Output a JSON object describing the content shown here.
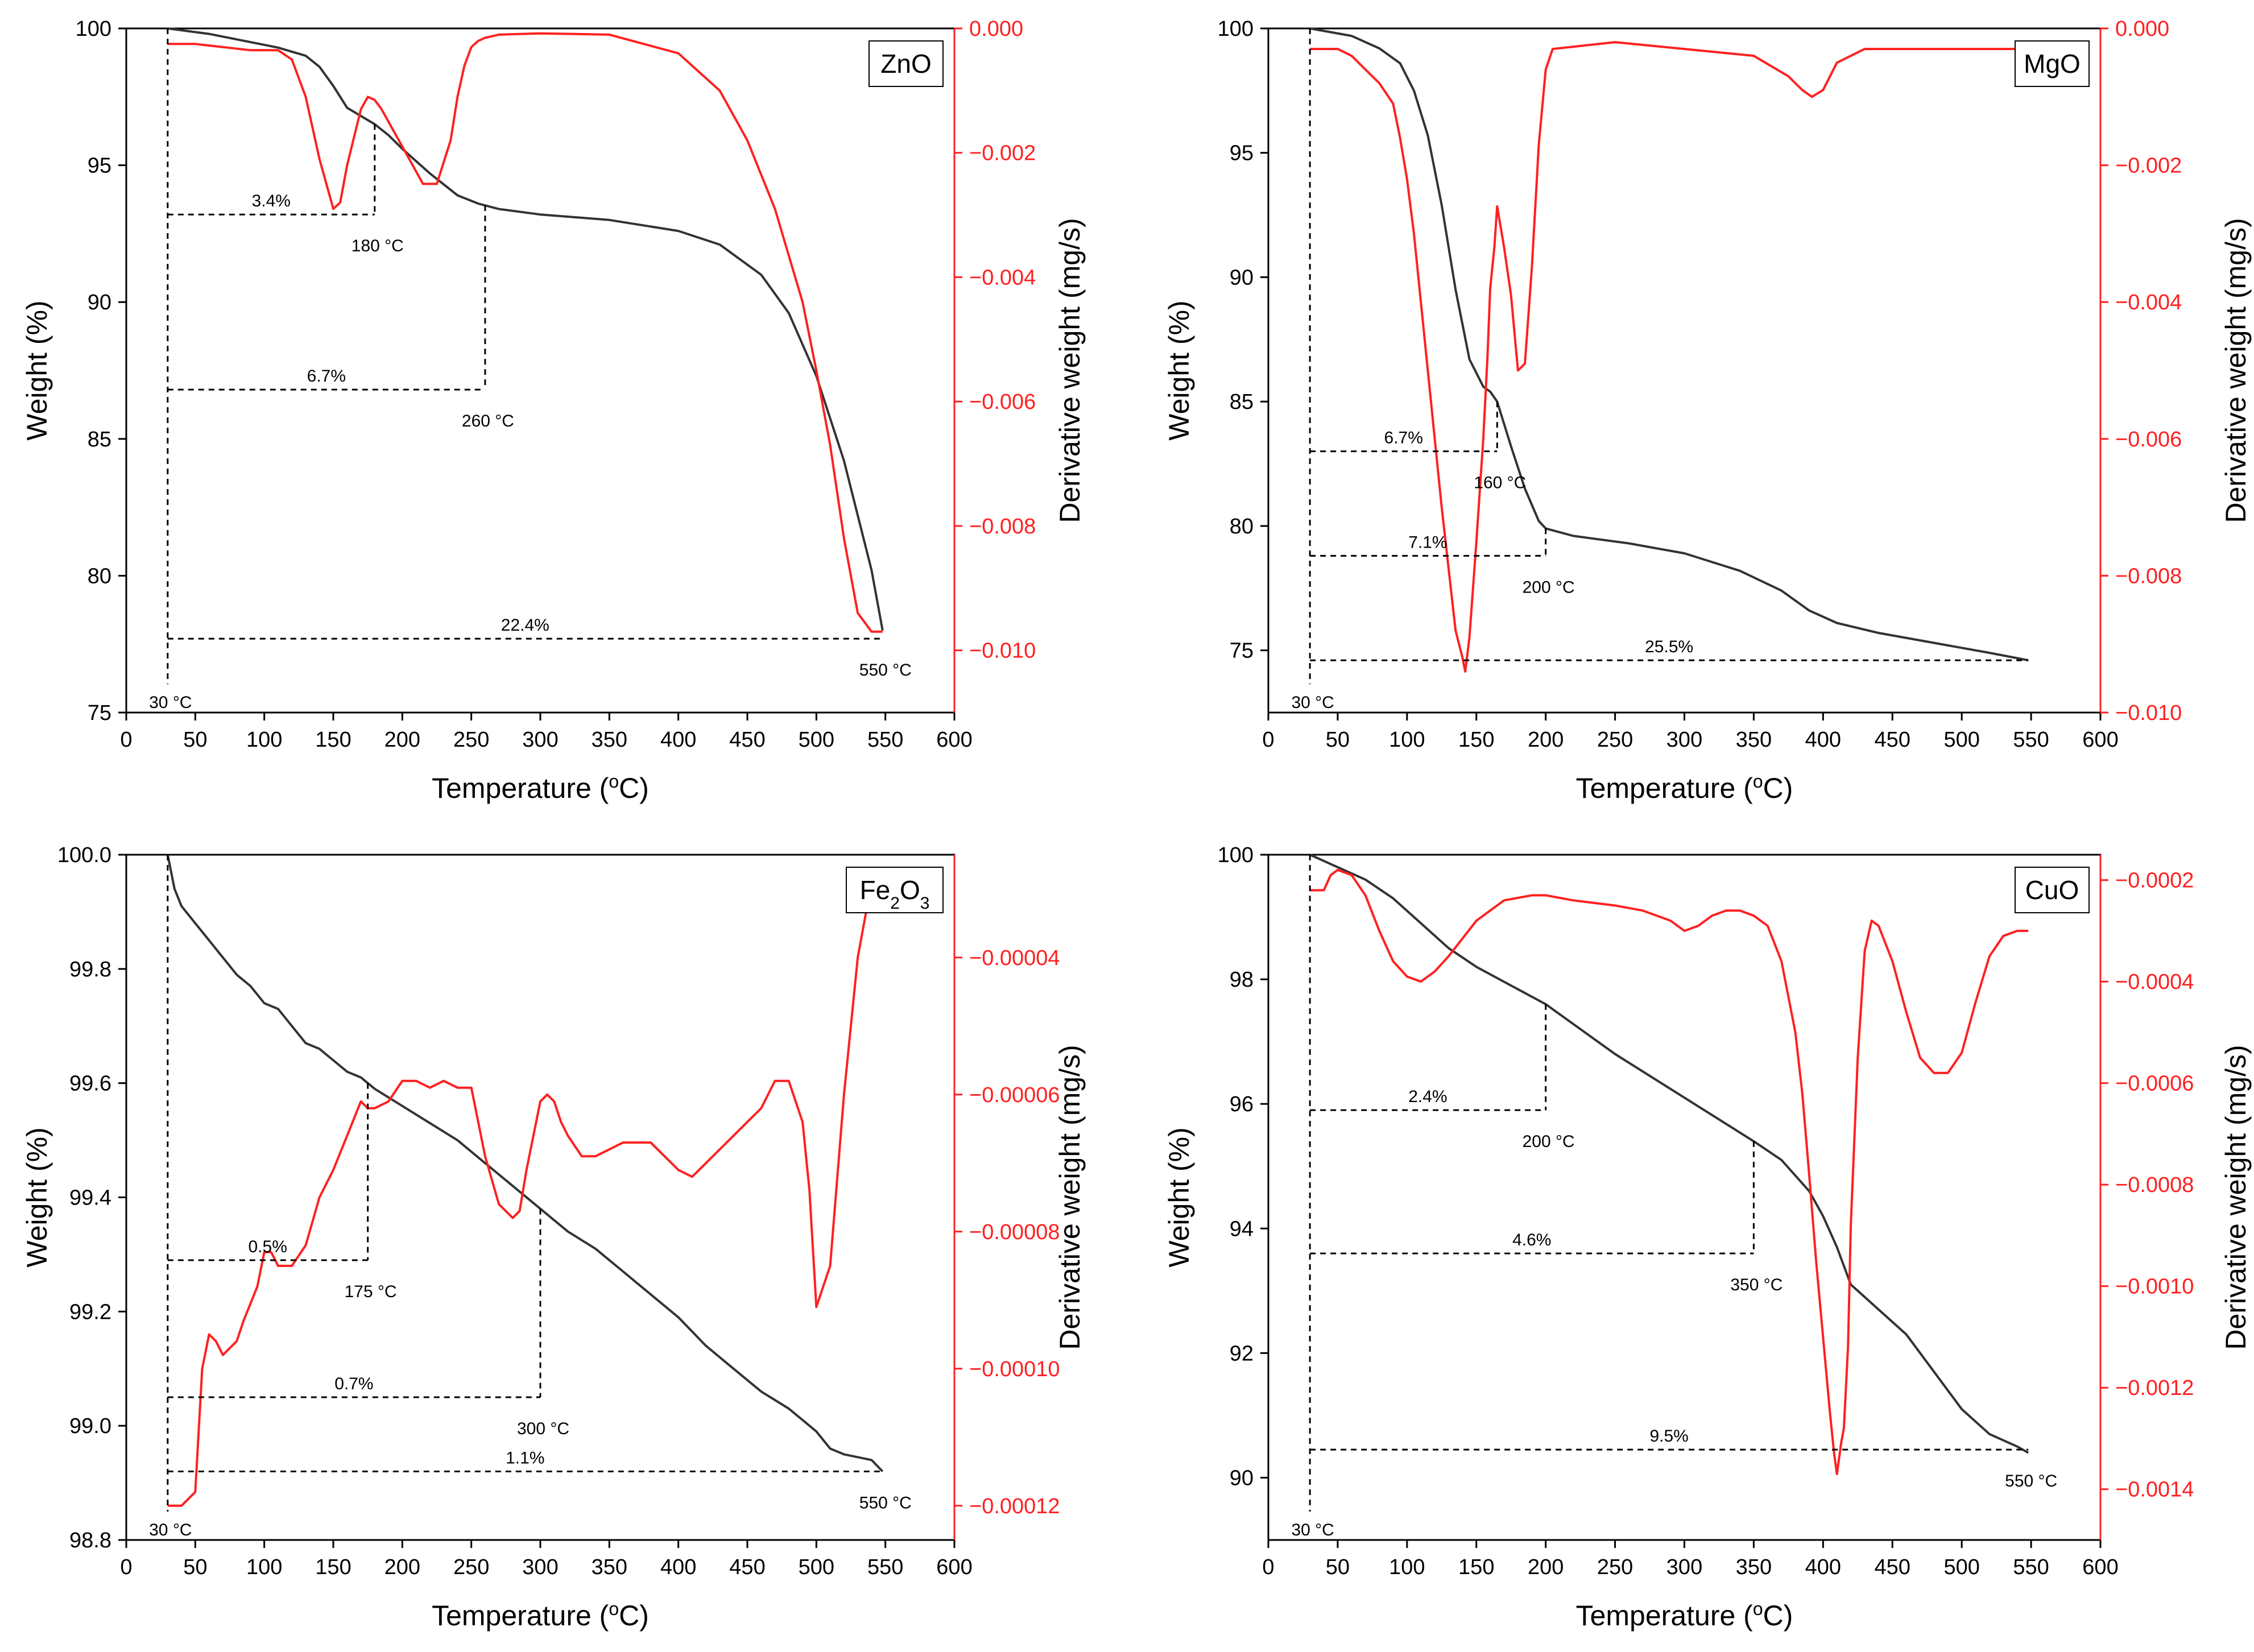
{
  "colors": {
    "weight": "#333333",
    "derivative": "#ff2020",
    "annotation": "#000000"
  },
  "chart_data": [
    {
      "type": "line",
      "panel_label": "ZnO",
      "xlabel": "Temperature (",
      "xlabel_sup": "o",
      "xlabel_tail": "C)",
      "ylabel": "Weight (%)",
      "y2label": "Derivative weight (mg/s)",
      "xlim": [
        0,
        600
      ],
      "ylim": [
        75,
        100
      ],
      "y2lim": [
        -0.011,
        0.0
      ],
      "xticks": [
        0,
        50,
        100,
        150,
        200,
        250,
        300,
        350,
        400,
        450,
        500,
        550,
        600
      ],
      "yticks": [
        75,
        80,
        85,
        90,
        95,
        100
      ],
      "yticklabels": [
        "75",
        "80",
        "85",
        "90",
        "95",
        "100"
      ],
      "y2ticks": [
        0.0,
        -0.002,
        -0.004,
        -0.006,
        -0.008,
        -0.01
      ],
      "y2ticklabels": [
        "0.000",
        "−0.002",
        "−0.004",
        "−0.006",
        "−0.008",
        "−0.010"
      ],
      "series": [
        {
          "axis": "left",
          "x": [
            30,
            60,
            90,
            110,
            130,
            140,
            150,
            160,
            170,
            180,
            190,
            200,
            220,
            240,
            255,
            270,
            300,
            350,
            400,
            430,
            460,
            480,
            500,
            520,
            540,
            548
          ],
          "y": [
            100,
            99.8,
            99.5,
            99.3,
            99.0,
            98.6,
            97.9,
            97.1,
            96.8,
            96.5,
            96.1,
            95.6,
            94.7,
            93.9,
            93.6,
            93.4,
            93.2,
            93.0,
            92.6,
            92.1,
            91.0,
            89.6,
            87.3,
            84.2,
            80.2,
            78.0
          ]
        },
        {
          "axis": "right",
          "x": [
            30,
            50,
            70,
            90,
            110,
            120,
            130,
            140,
            150,
            155,
            160,
            170,
            175,
            180,
            185,
            195,
            205,
            215,
            225,
            235,
            240,
            245,
            250,
            255,
            260,
            270,
            300,
            350,
            400,
            430,
            450,
            470,
            490,
            500,
            510,
            520,
            530,
            540,
            548
          ],
          "y": [
            -0.00025,
            -0.00025,
            -0.0003,
            -0.00035,
            -0.00035,
            -0.0005,
            -0.0011,
            -0.0021,
            -0.0029,
            -0.0028,
            -0.0022,
            -0.0013,
            -0.0011,
            -0.00115,
            -0.0013,
            -0.0017,
            -0.0021,
            -0.0025,
            -0.0025,
            -0.0018,
            -0.0011,
            -0.0006,
            -0.0003,
            -0.0002,
            -0.00015,
            -0.0001,
            -8e-05,
            -0.0001,
            -0.0004,
            -0.001,
            -0.0018,
            -0.0029,
            -0.0044,
            -0.0055,
            -0.0067,
            -0.0082,
            -0.0094,
            -0.0097,
            -0.0097
          ]
        }
      ],
      "annotations": [
        {
          "pct": "3.4%",
          "temp": "180 °C",
          "x_end": 180,
          "y": 93.2
        },
        {
          "pct": "6.7%",
          "temp": "260 °C",
          "x_end": 260,
          "y": 86.8
        },
        {
          "pct": "22.4%",
          "temp": "550 °C",
          "x_end": 548,
          "y": 77.7
        }
      ],
      "start_label": "30 °C",
      "start_x": 30
    },
    {
      "type": "line",
      "panel_label": "MgO",
      "xlabel": "Temperature (",
      "xlabel_sup": "o",
      "xlabel_tail": "C)",
      "ylabel": "Weight (%)",
      "y2label": "Derivative weight (mg/s)",
      "xlim": [
        0,
        600
      ],
      "ylim": [
        72.5,
        100
      ],
      "y2lim": [
        -0.01,
        0.0
      ],
      "xticks": [
        0,
        50,
        100,
        150,
        200,
        250,
        300,
        350,
        400,
        450,
        500,
        550,
        600
      ],
      "yticks": [
        75,
        80,
        85,
        90,
        95,
        100
      ],
      "yticklabels": [
        "75",
        "80",
        "85",
        "90",
        "95",
        "100"
      ],
      "y2ticks": [
        0.0,
        -0.002,
        -0.004,
        -0.006,
        -0.008,
        -0.01
      ],
      "y2ticklabels": [
        "0.000",
        "−0.002",
        "−0.004",
        "−0.006",
        "−0.008",
        "−0.010"
      ],
      "series": [
        {
          "axis": "left",
          "x": [
            30,
            60,
            80,
            95,
            105,
            115,
            125,
            135,
            145,
            155,
            160,
            165,
            175,
            185,
            195,
            200,
            220,
            260,
            300,
            340,
            370,
            390,
            410,
            440,
            480,
            520,
            548
          ],
          "y": [
            100,
            99.7,
            99.2,
            98.6,
            97.5,
            95.7,
            92.9,
            89.5,
            86.7,
            85.6,
            85.4,
            85.0,
            83.2,
            81.5,
            80.2,
            79.9,
            79.6,
            79.3,
            78.9,
            78.2,
            77.4,
            76.6,
            76.1,
            75.7,
            75.3,
            74.9,
            74.6
          ]
        },
        {
          "axis": "right",
          "x": [
            30,
            50,
            60,
            70,
            80,
            90,
            95,
            100,
            105,
            110,
            115,
            120,
            125,
            130,
            135,
            140,
            142,
            145,
            150,
            155,
            158,
            160,
            163,
            165,
            170,
            175,
            180,
            185,
            190,
            195,
            200,
            205,
            250,
            300,
            350,
            375,
            385,
            392,
            400,
            410,
            430,
            500,
            548
          ],
          "y": [
            -0.0003,
            -0.0003,
            -0.0004,
            -0.0006,
            -0.0008,
            -0.0011,
            -0.0016,
            -0.0022,
            -0.003,
            -0.004,
            -0.005,
            -0.006,
            -0.007,
            -0.0079,
            -0.0088,
            -0.0092,
            -0.0094,
            -0.0089,
            -0.0075,
            -0.006,
            -0.0048,
            -0.0038,
            -0.0032,
            -0.0026,
            -0.0032,
            -0.0039,
            -0.005,
            -0.0049,
            -0.0035,
            -0.0017,
            -0.0006,
            -0.0003,
            -0.0002,
            -0.0003,
            -0.0004,
            -0.0007,
            -0.0009,
            -0.001,
            -0.0009,
            -0.0005,
            -0.0003,
            -0.0003,
            -0.0003
          ]
        }
      ],
      "annotations": [
        {
          "pct": "6.7%",
          "temp": "160 °C",
          "x_end": 165,
          "y": 83.0
        },
        {
          "pct": "7.1%",
          "temp": "200 °C",
          "x_end": 200,
          "y": 78.8
        },
        {
          "pct": "25.5%",
          "temp": "",
          "x_end": 548,
          "y": 74.6
        }
      ],
      "start_label": "30 °C",
      "start_x": 30
    },
    {
      "type": "line",
      "panel_label": "Fe",
      "panel_label_sub1": "2",
      "panel_label_mid": "O",
      "panel_label_sub2": "3",
      "xlabel": "Temperature (",
      "xlabel_sup": "o",
      "xlabel_tail": "C)",
      "ylabel": "Weight (%)",
      "y2label": "Derivative weight (mg/s)",
      "xlim": [
        0,
        600
      ],
      "ylim": [
        98.8,
        100.0
      ],
      "y2lim": [
        -0.000125,
        -2.5e-05
      ],
      "xticks": [
        0,
        50,
        100,
        150,
        200,
        250,
        300,
        350,
        400,
        450,
        500,
        550,
        600
      ],
      "yticks": [
        98.8,
        99.0,
        99.2,
        99.4,
        99.6,
        99.8,
        100.0
      ],
      "yticklabels": [
        "98.8",
        "99.0",
        "99.2",
        "99.4",
        "99.6",
        "99.8",
        "100.0"
      ],
      "y2ticks": [
        -4e-05,
        -6e-05,
        -8e-05,
        -0.0001,
        -0.00012
      ],
      "y2ticklabels": [
        "−0.00004",
        "−0.00006",
        "−0.00008",
        "−0.00010",
        "−0.00012"
      ],
      "series": [
        {
          "axis": "left",
          "x": [
            30,
            35,
            40,
            50,
            60,
            70,
            80,
            90,
            100,
            110,
            120,
            130,
            140,
            150,
            160,
            170,
            180,
            200,
            220,
            240,
            260,
            280,
            300,
            320,
            340,
            360,
            380,
            400,
            420,
            440,
            460,
            480,
            490,
            500,
            510,
            520,
            540,
            548
          ],
          "y": [
            100,
            99.94,
            99.91,
            99.88,
            99.85,
            99.82,
            99.79,
            99.77,
            99.74,
            99.73,
            99.7,
            99.67,
            99.66,
            99.64,
            99.62,
            99.61,
            99.59,
            99.56,
            99.53,
            99.5,
            99.46,
            99.42,
            99.38,
            99.34,
            99.31,
            99.27,
            99.23,
            99.19,
            99.14,
            99.1,
            99.06,
            99.03,
            99.01,
            98.99,
            98.96,
            98.95,
            98.94,
            98.92
          ]
        },
        {
          "axis": "right",
          "x": [
            30,
            40,
            50,
            55,
            60,
            65,
            70,
            75,
            80,
            85,
            95,
            100,
            105,
            110,
            115,
            120,
            130,
            140,
            150,
            160,
            170,
            175,
            180,
            190,
            200,
            210,
            220,
            230,
            240,
            250,
            260,
            270,
            280,
            285,
            290,
            300,
            305,
            310,
            315,
            320,
            330,
            340,
            350,
            360,
            370,
            380,
            390,
            400,
            410,
            420,
            440,
            460,
            470,
            480,
            490,
            495,
            500,
            510,
            520,
            530,
            540,
            548
          ],
          "y": [
            -0.00012,
            -0.00012,
            -0.000118,
            -0.0001,
            -9.5e-05,
            -9.6e-05,
            -9.8e-05,
            -9.7e-05,
            -9.6e-05,
            -9.3e-05,
            -8.8e-05,
            -8.3e-05,
            -8.3e-05,
            -8.5e-05,
            -8.5e-05,
            -8.5e-05,
            -8.2e-05,
            -7.5e-05,
            -7.1e-05,
            -6.6e-05,
            -6.1e-05,
            -6.2e-05,
            -6.2e-05,
            -6.1e-05,
            -5.8e-05,
            -5.8e-05,
            -5.9e-05,
            -5.8e-05,
            -5.9e-05,
            -5.9e-05,
            -6.9e-05,
            -7.6e-05,
            -7.8e-05,
            -7.7e-05,
            -7.1e-05,
            -6.1e-05,
            -6e-05,
            -6.1e-05,
            -6.4e-05,
            -6.6e-05,
            -6.9e-05,
            -6.9e-05,
            -6.8e-05,
            -6.7e-05,
            -6.7e-05,
            -6.7e-05,
            -6.9e-05,
            -7.1e-05,
            -7.2e-05,
            -7e-05,
            -6.6e-05,
            -6.2e-05,
            -5.8e-05,
            -5.8e-05,
            -6.4e-05,
            -7.4e-05,
            -9.1e-05,
            -8.5e-05,
            -6e-05,
            -4e-05,
            -2.9e-05,
            -2.9e-05
          ]
        }
      ],
      "annotations": [
        {
          "pct": "0.5%",
          "temp": "175 °C",
          "x_end": 175,
          "y": 99.29
        },
        {
          "pct": "0.7%",
          "temp": "300 °C",
          "x_end": 300,
          "y": 99.05
        },
        {
          "pct": "1.1%",
          "temp": "550 °C",
          "x_end": 548,
          "y": 98.92
        }
      ],
      "start_label": "30 °C",
      "start_x": 30
    },
    {
      "type": "line",
      "panel_label": "CuO",
      "xlabel": "Temperature (",
      "xlabel_sup": "o",
      "xlabel_tail": "C)",
      "ylabel": "Weight (%)",
      "y2label": "Derivative weight (mg/s)",
      "xlim": [
        0,
        600
      ],
      "ylim": [
        89,
        100
      ],
      "y2lim": [
        -0.0015,
        -0.00015
      ],
      "xticks": [
        0,
        50,
        100,
        150,
        200,
        250,
        300,
        350,
        400,
        450,
        500,
        550,
        600
      ],
      "yticks": [
        90,
        92,
        94,
        96,
        98,
        100
      ],
      "yticklabels": [
        "90",
        "92",
        "94",
        "96",
        "98",
        "100"
      ],
      "y2ticks": [
        -0.0002,
        -0.0004,
        -0.0006,
        -0.0008,
        -0.001,
        -0.0012,
        -0.0014
      ],
      "y2ticklabels": [
        "−0.0002",
        "−0.0004",
        "−0.0006",
        "−0.0008",
        "−0.0010",
        "−0.0012",
        "−0.0014"
      ],
      "series": [
        {
          "axis": "left",
          "x": [
            30,
            50,
            70,
            90,
            110,
            130,
            150,
            200,
            250,
            300,
            350,
            370,
            390,
            400,
            410,
            420,
            430,
            440,
            460,
            480,
            500,
            520,
            540,
            548
          ],
          "y": [
            100,
            99.8,
            99.6,
            99.3,
            98.9,
            98.5,
            98.2,
            97.6,
            96.8,
            96.1,
            95.4,
            95.1,
            94.6,
            94.2,
            93.7,
            93.1,
            92.9,
            92.7,
            92.3,
            91.7,
            91.1,
            90.7,
            90.5,
            90.4
          ]
        },
        {
          "axis": "right",
          "x": [
            30,
            40,
            45,
            50,
            60,
            70,
            80,
            90,
            100,
            110,
            120,
            130,
            150,
            170,
            190,
            200,
            220,
            250,
            270,
            280,
            290,
            300,
            310,
            320,
            330,
            340,
            350,
            360,
            370,
            380,
            385,
            390,
            395,
            400,
            405,
            408,
            410,
            413,
            415,
            418,
            420,
            425,
            430,
            435,
            440,
            450,
            460,
            470,
            480,
            490,
            500,
            510,
            520,
            530,
            540,
            548
          ],
          "y": [
            -0.00022,
            -0.00022,
            -0.00019,
            -0.00018,
            -0.00019,
            -0.00023,
            -0.0003,
            -0.00036,
            -0.00039,
            -0.0004,
            -0.00038,
            -0.00035,
            -0.00028,
            -0.00024,
            -0.00023,
            -0.00023,
            -0.00024,
            -0.00025,
            -0.00026,
            -0.00027,
            -0.00028,
            -0.0003,
            -0.00029,
            -0.00027,
            -0.00026,
            -0.00026,
            -0.00027,
            -0.00029,
            -0.00036,
            -0.0005,
            -0.00062,
            -0.00078,
            -0.00095,
            -0.0011,
            -0.00125,
            -0.00133,
            -0.00137,
            -0.00131,
            -0.00128,
            -0.00112,
            -0.00088,
            -0.00055,
            -0.00034,
            -0.00028,
            -0.00029,
            -0.00036,
            -0.00046,
            -0.00055,
            -0.00058,
            -0.00058,
            -0.00054,
            -0.00044,
            -0.00035,
            -0.00031,
            -0.0003,
            -0.0003
          ]
        }
      ],
      "annotations": [
        {
          "pct": "2.4%",
          "temp": "200 °C",
          "x_end": 200,
          "y": 95.9
        },
        {
          "pct": "4.6%",
          "temp": "350 °C",
          "x_end": 350,
          "y": 93.6
        },
        {
          "pct": "9.5%",
          "temp": "550 °C",
          "x_end": 548,
          "y": 90.45
        }
      ],
      "start_label": "30 °C",
      "start_x": 30
    }
  ]
}
